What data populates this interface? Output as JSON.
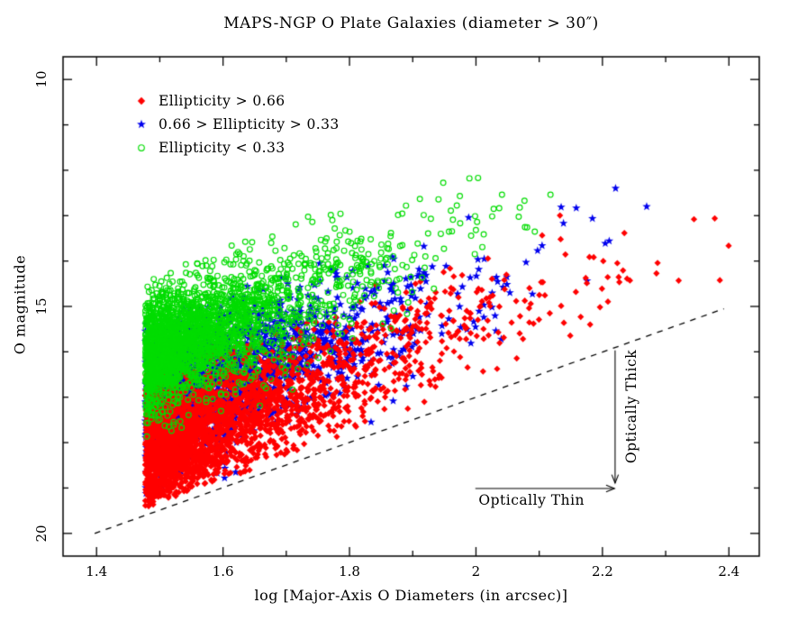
{
  "chart_data": {
    "type": "scatter",
    "title": "MAPS-NGP O Plate Galaxies (diameter > 30″)",
    "xlabel": "log [Major-Axis O Diameters (in arcsec)]",
    "ylabel": "O magnitude",
    "xlim": [
      1.347,
      2.448
    ],
    "ylim": [
      9.5,
      20.5
    ],
    "y_axis_inverted": true,
    "grid": false,
    "x_ticks": {
      "major": [
        1.4,
        1.6,
        1.8,
        2.0,
        2.2,
        2.4
      ],
      "major_labels": [
        "1.4",
        "1.6",
        "1.8",
        "2",
        "2.2",
        "2.4"
      ],
      "minor": [
        1.5,
        1.7,
        1.9,
        2.1,
        2.3
      ]
    },
    "y_ticks": {
      "major": [
        10,
        15,
        20
      ],
      "major_labels": [
        "10",
        "15",
        "20"
      ],
      "minor": [
        11,
        12,
        13,
        14,
        16,
        17,
        18,
        19
      ]
    },
    "series": [
      {
        "name": "Ellipticity > 0.66",
        "marker": "filled-diamond",
        "color": "#ff0000",
        "n_points": 2800,
        "x_min": 1.477,
        "x_max": 2.4,
        "x_exp_scale": 0.145,
        "mag_mean_at_xmin": 18.25,
        "mag_slope_per_dex": -5.6,
        "mag_sigma": 0.7
      },
      {
        "name": "0.66 > Ellipticity > 0.33",
        "marker": "filled-star",
        "color": "#0000ee",
        "n_points": 2400,
        "x_min": 1.477,
        "x_max": 2.28,
        "x_exp_scale": 0.125,
        "mag_mean_at_xmin": 17.2,
        "mag_slope_per_dex": -5.3,
        "mag_sigma": 0.7
      },
      {
        "name": "Ellipticity < 0.33",
        "marker": "open-circle",
        "color": "#00dd00",
        "n_points": 2600,
        "x_min": 1.477,
        "x_max": 2.12,
        "x_exp_scale": 0.105,
        "mag_mean_at_xmin": 16.1,
        "mag_slope_per_dex": -5.5,
        "mag_sigma": 0.65
      }
    ],
    "draw_order": [
      1,
      0,
      2
    ],
    "faint_clip_margin_mag": 0.17,
    "bright_limit_mag": 11.85,
    "random_seed": 20,
    "completeness_line": {
      "style": "dashed",
      "color": "#000000",
      "x1": 1.397,
      "mag1": 20.0,
      "x2": 2.392,
      "mag2": 15.05
    },
    "arrows": [
      {
        "x1": 2.22,
        "mag1": 15.97,
        "x2": 2.22,
        "mag2": 18.89
      },
      {
        "x1": 1.999,
        "mag1": 19.01,
        "x2": 2.219,
        "mag2": 19.01
      }
    ],
    "annotations": [
      {
        "text": "Optically Thick",
        "x": 2.246,
        "mag": 17.2,
        "rotation": -90
      },
      {
        "text": "Optically Thin",
        "x": 2.088,
        "mag": 19.27,
        "rotation": 0
      }
    ],
    "legend_position": "upper-left"
  }
}
